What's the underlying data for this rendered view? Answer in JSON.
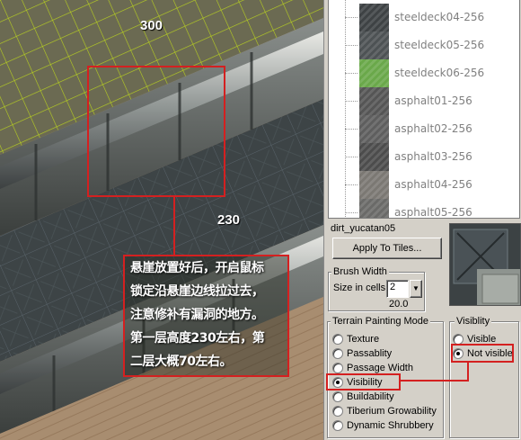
{
  "viewport": {
    "label_top": "300",
    "label_mid": "230",
    "annotation_lines": [
      "悬崖放置好后，开启鼠标",
      "锁定沿悬崖边线拉过去，",
      "注意修补有漏洞的地方。",
      "第一层高度230左右，第",
      "二层大概70左右。"
    ]
  },
  "tiles": {
    "items": [
      {
        "name": "steeldeck04-256",
        "color": "#3e4244"
      },
      {
        "name": "steeldeck05-256",
        "color": "#4d5254"
      },
      {
        "name": "steeldeck06-256",
        "color": "#6aa84a"
      },
      {
        "name": "asphalt01-256",
        "color": "#555555"
      },
      {
        "name": "asphalt02-256",
        "color": "#5e5e5e"
      },
      {
        "name": "asphalt03-256",
        "color": "#4c4c4c"
      },
      {
        "name": "asphalt04-256",
        "color": "#7b7873"
      },
      {
        "name": "asphalt05-256",
        "color": "#6a6a68"
      }
    ],
    "selected_name": "dirt_yucatan05",
    "apply_button": "Apply To Tiles..."
  },
  "brush": {
    "title": "Brush Width",
    "size_label": "Size in cells:",
    "size_value": "2",
    "value_readout": "20.0"
  },
  "painting_mode": {
    "title": "Terrain Painting Mode",
    "options": [
      {
        "label": "Texture",
        "checked": false
      },
      {
        "label": "Passablity",
        "checked": false
      },
      {
        "label": "Passage Width",
        "checked": false
      },
      {
        "label": "Visibility",
        "checked": true
      },
      {
        "label": "Buildability",
        "checked": false
      },
      {
        "label": "Tiberium Growability",
        "checked": false
      },
      {
        "label": "Dynamic Shrubbery",
        "checked": false
      }
    ]
  },
  "visibility": {
    "title": "Visiblity",
    "options": [
      {
        "label": "Visible",
        "checked": false
      },
      {
        "label": "Not visible",
        "checked": true
      }
    ]
  },
  "colors": {
    "highlight": "#d42020"
  }
}
